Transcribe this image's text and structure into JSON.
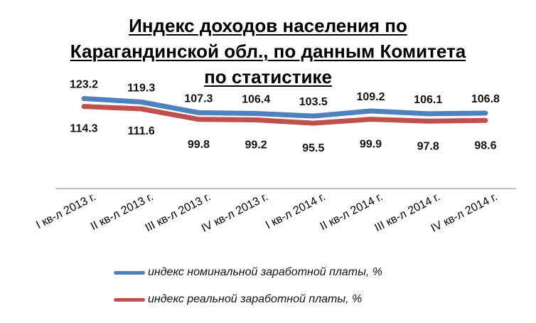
{
  "title": {
    "line1": "Индекс доходов населения по",
    "line2": "Карагандинской обл., по данным Комитета",
    "line3": "по статистике"
  },
  "chart_data": {
    "type": "line",
    "categories": [
      "I кв-л 2013 г.",
      "II кв-л 2013 г.",
      "III кв-л 2013 г.",
      "IV кв-л 2013 г.",
      "I кв-л 2014 г.",
      "II кв-л 2014 г.",
      "III кв-л 2014 г.",
      "IV кв-л 2014 г."
    ],
    "series": [
      {
        "name": "индекс номинальной заработной платы, %",
        "values": [
          123.2,
          119.3,
          107.3,
          106.4,
          103.5,
          109.2,
          106.1,
          106.8
        ],
        "labels": [
          "123.2",
          "119.3",
          "107.3",
          "106.4",
          "103.5",
          "109.2",
          "106.1",
          "106.8"
        ],
        "color": "#4F81BD"
      },
      {
        "name": "индекс реальной заработной платы, %",
        "values": [
          114.3,
          111.6,
          99.8,
          99.2,
          95.5,
          99.9,
          97.8,
          98.6
        ],
        "labels": [
          "114.3",
          "111.6",
          "99.8",
          "99.2",
          "95.5",
          "99.9",
          "97.8",
          "98.6"
        ],
        "color": "#C0504D"
      }
    ],
    "xlabel": "",
    "ylabel": "",
    "grid": false,
    "legend_position": "bottom"
  }
}
